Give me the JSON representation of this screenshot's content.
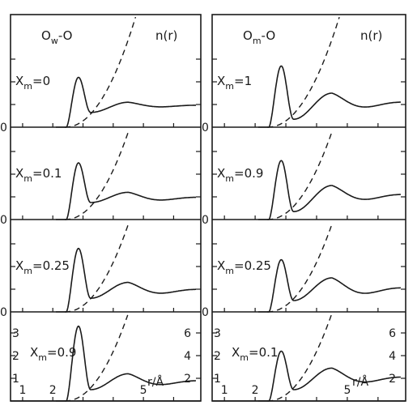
{
  "chart_data": [
    {
      "type": "line",
      "title": "O_w-O",
      "title_main": "O",
      "title_sub": "w",
      "title_tail": "-O",
      "nr_label": "n(r)",
      "xlabel": "r/Å",
      "xlim": [
        0.6,
        6.9
      ],
      "x_ticks": [
        "1",
        "2",
        "5"
      ],
      "x_tick_values": [
        1,
        2,
        5
      ],
      "panels": [
        {
          "xm_text": "=0",
          "y_zero_label": "0",
          "y_ticks": [],
          "n_ticks": [],
          "g_peak": 2.2,
          "g_first_min": 0.65,
          "g_second_peak": 1.1,
          "g_long": 0.95
        },
        {
          "xm_text": "=0.1",
          "y_zero_label": "0",
          "y_ticks": [],
          "n_ticks": [],
          "g_peak": 2.5,
          "g_first_min": 0.75,
          "g_second_peak": 1.2,
          "g_long": 0.95
        },
        {
          "xm_text": "=0.25",
          "y_zero_label": "0",
          "y_ticks": [],
          "n_ticks": [],
          "g_peak": 2.8,
          "g_first_min": 0.6,
          "g_second_peak": 1.3,
          "g_long": 0.95
        },
        {
          "xm_text": "=0.9",
          "y_zero_label": "",
          "y_ticks": [
            "1",
            "2",
            "3"
          ],
          "n_ticks": [
            "2",
            "4",
            "6"
          ],
          "g_peak": 3.3,
          "g_first_min": 0.5,
          "g_second_peak": 1.2,
          "g_long": 0.85
        }
      ]
    },
    {
      "type": "line",
      "title": "O_m-O",
      "title_main": "O",
      "title_sub": "m",
      "title_tail": "-O",
      "nr_label": "n(r)",
      "xlabel": "r/Å",
      "xlim": [
        0.6,
        6.9
      ],
      "x_ticks": [
        "1",
        "2",
        "5"
      ],
      "x_tick_values": [
        1,
        2,
        5
      ],
      "panels": [
        {
          "xm_text": "=1",
          "y_zero_label": "0",
          "y_ticks": [],
          "n_ticks": [],
          "g_peak": 2.7,
          "g_first_min": 0.35,
          "g_second_peak": 1.5,
          "g_long": 1.05
        },
        {
          "xm_text": "=0.9",
          "y_zero_label": "0",
          "y_ticks": [],
          "n_ticks": [],
          "g_peak": 2.6,
          "g_first_min": 0.35,
          "g_second_peak": 1.5,
          "g_long": 1.05
        },
        {
          "xm_text": "=0.25",
          "y_zero_label": "0",
          "y_ticks": [],
          "n_ticks": [],
          "g_peak": 2.3,
          "g_first_min": 0.5,
          "g_second_peak": 1.5,
          "g_long": 1.0
        },
        {
          "xm_text": "=0.1",
          "y_zero_label": "",
          "y_ticks": [
            "1",
            "2",
            "3"
          ],
          "n_ticks": [
            "2",
            "4",
            "6"
          ],
          "g_peak": 2.2,
          "g_first_min": 0.5,
          "g_second_peak": 1.45,
          "g_long": 1.0
        }
      ]
    }
  ],
  "colors": {
    "ink": "#1a1a1a",
    "paper": "#ffffff"
  }
}
